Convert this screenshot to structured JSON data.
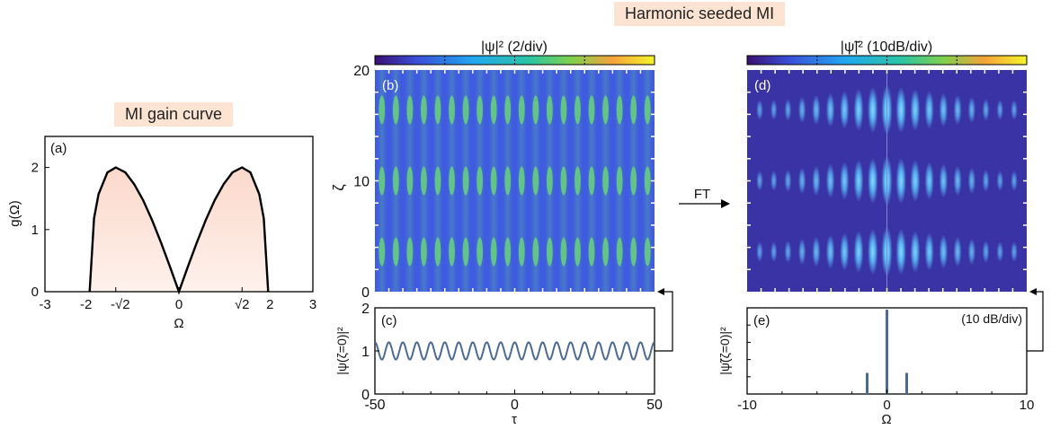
{
  "header": {
    "left_title": "MI gain curve",
    "right_title": "Harmonic seeded MI",
    "ft_label": "FT"
  },
  "chart_data": [
    {
      "id": "a",
      "type": "area",
      "panel_label": "(a)",
      "xlabel": "Ω",
      "ylabel": "g(Ω)",
      "xlim": [
        -3,
        3
      ],
      "ylim": [
        0,
        2.5
      ],
      "x_ticks": [
        "-3",
        "-2",
        "-√2",
        "0",
        "√2",
        "2",
        "3"
      ],
      "y_ticks": [
        "0",
        "1",
        "2"
      ],
      "series": [
        {
          "x": [
            -2.0,
            -1.9,
            -1.8,
            -1.6,
            -1.414,
            -1.2,
            -1.0,
            -0.8,
            -0.6,
            -0.4,
            -0.2,
            0.0,
            0.2,
            0.4,
            0.6,
            0.8,
            1.0,
            1.2,
            1.414,
            1.6,
            1.8,
            1.9,
            2.0
          ],
          "y": [
            0.0,
            1.18,
            1.57,
            1.92,
            2.0,
            1.92,
            1.73,
            1.47,
            1.15,
            0.79,
            0.4,
            0.0,
            0.4,
            0.79,
            1.15,
            1.47,
            1.73,
            1.92,
            2.0,
            1.92,
            1.57,
            1.18,
            0.0
          ]
        }
      ],
      "colors": {
        "line": "#000000",
        "fill_top": "#fbd9cb",
        "fill_bottom": "#fef1ec"
      }
    },
    {
      "id": "b",
      "type": "heatmap",
      "panel_label": "(b)",
      "colorbar_label": "|ψ|² (2/div)",
      "ylabel": "ζ",
      "ylim": [
        0,
        20
      ],
      "y_ticks": [
        "0",
        "10",
        "20"
      ],
      "xlim": [
        -50,
        50
      ],
      "recurrence_zeta": [
        3.6,
        10.0,
        16.4
      ],
      "stripes": 20,
      "colors": {
        "background": "#3f5ce0",
        "peak": "#67d27b"
      }
    },
    {
      "id": "c",
      "type": "line",
      "panel_label": "(c)",
      "xlabel": "τ",
      "ylabel": "|ψ(ζ=0)|²",
      "xlim": [
        -50,
        50
      ],
      "ylim": [
        0,
        2
      ],
      "x_ticks": [
        "-50",
        "0",
        "50"
      ],
      "y_ticks": [
        "0",
        "1",
        "2"
      ],
      "series": [
        {
          "mean": 1.0,
          "amplitude": 0.2,
          "periods": 20
        }
      ],
      "colors": {
        "line": "#4c6a94"
      }
    },
    {
      "id": "d",
      "type": "heatmap",
      "panel_label": "(d)",
      "colorbar_label": "|ψ̃|² (10dB/div)",
      "ylim": [
        0,
        20
      ],
      "xlim": [
        -10,
        10
      ],
      "recurrence_zeta": [
        3.6,
        10.0,
        16.4
      ],
      "harmonics": 9,
      "colors": {
        "background": "#3a33a6",
        "peak": "#59b7f5"
      }
    },
    {
      "id": "e",
      "type": "bar",
      "panel_label": "(e)",
      "annotation": "(10 dB/div)",
      "xlabel": "Ω",
      "ylabel": "|ψ̃(ζ=0)|²",
      "xlim": [
        -10,
        10
      ],
      "x_ticks": [
        "-10",
        "0",
        "10"
      ],
      "series": [
        {
          "x": [
            -1.414,
            0,
            1.414
          ],
          "values": [
            0.25,
            1.0,
            0.25
          ]
        }
      ],
      "colors": {
        "bar": "#4c6a94"
      }
    }
  ]
}
